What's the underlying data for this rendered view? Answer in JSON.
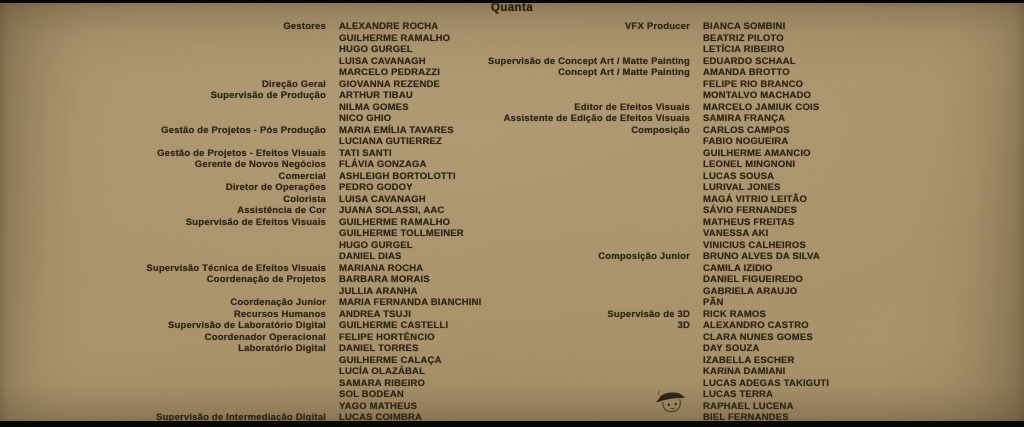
{
  "title": "Quanta",
  "colors": {
    "paper": "#af9970",
    "ink": "#2e2514",
    "letterbox_bar": "#070706"
  },
  "icons": {
    "mascot": "mascot-doodle-icon"
  },
  "credits": {
    "left": [
      {
        "role": "Gestores",
        "names": [
          "ALEXANDRE ROCHA",
          "GUILHERME RAMALHO",
          "HUGO GURGEL",
          "LUISA CAVANAGH",
          "MARCELO PEDRAZZI"
        ]
      },
      {
        "role": "Direção Geral",
        "names": [
          "GIOVANNA REZENDE"
        ]
      },
      {
        "role": "Supervisão de Produção",
        "names": [
          "ARTHUR TIBAU",
          "NILMA GOMES",
          "NICO GHIO"
        ]
      },
      {
        "role": "Gestão de Projetos - Pós Produção",
        "names": [
          "MARIA EMÍLIA TAVARES",
          "LUCIANA GUTIERREZ"
        ]
      },
      {
        "role": "Gestão de Projetos - Efeitos Visuais",
        "names": [
          "TATI SANTI"
        ]
      },
      {
        "role": "Gerente de Novos Negócios",
        "names": [
          "FLÁVIA GONZAGA"
        ]
      },
      {
        "role": "Comercial",
        "names": [
          "ASHLEIGH BORTOLOTTI"
        ]
      },
      {
        "role": "Diretor de Operações",
        "names": [
          "PEDRO GODOY"
        ]
      },
      {
        "role": "Colorista",
        "names": [
          "LUISA CAVANAGH"
        ]
      },
      {
        "role": "Assistência de Cor",
        "names": [
          "JUANA SOLASSI, AAC"
        ]
      },
      {
        "role": "Supervisão de Efeitos Visuais",
        "names": [
          "GUILHERME RAMALHO",
          "GUILHERME TOLLMEINER",
          "HUGO GURGEL",
          "DANIEL DIAS"
        ]
      },
      {
        "role": "Supervisão Técnica de Efeitos Visuais",
        "names": [
          "MARIANA ROCHA"
        ]
      },
      {
        "role": "Coordenação de Projetos",
        "names": [
          "BARBARA MORAIS",
          "JULLIA ARANHA"
        ]
      },
      {
        "role": "Coordenação Junior",
        "names": [
          "MARIA FERNANDA BIANCHINI"
        ]
      },
      {
        "role": "Recursos Humanos",
        "names": [
          "ANDREA TSUJI"
        ]
      },
      {
        "role": "Supervisão de Laboratório Digital",
        "names": [
          "GUILHERME CASTELLI"
        ]
      },
      {
        "role": "Coordenador Operacional",
        "names": [
          "FELIPE HORTÊNCIO"
        ]
      },
      {
        "role": "Laboratório Digital",
        "names": [
          "DANIEL TORRES",
          "GUILHERME CALAÇA",
          "LUCÍA OLAZÁBAL",
          "SAMARA RIBEIRO",
          "SOL BODEAN",
          "YAGO MATHEUS"
        ]
      },
      {
        "role": "Supervisão de Intermediação Digital",
        "names": [
          "LUCAS COIMBRA"
        ]
      }
    ],
    "right": [
      {
        "role": "VFX Producer",
        "names": [
          "BIANCA SOMBINI",
          "BEATRIZ PILOTO",
          "LETÍCIA RIBEIRO"
        ]
      },
      {
        "role": "Supervisão de Concept Art / Matte Painting",
        "names": [
          "EDUARDO SCHAAL"
        ]
      },
      {
        "role": "Concept Art / Matte Painting",
        "names": [
          "AMANDA BROTTO",
          "FELIPE RIO BRANCO",
          "MONTALVO MACHADO"
        ]
      },
      {
        "role": "Editor de Efeitos Visuais",
        "names": [
          "MARCELO JAMIUK COIS"
        ]
      },
      {
        "role": "Assistente de Edição de Efeitos Visuais",
        "names": [
          "SAMIRA FRANÇA"
        ]
      },
      {
        "role": "Composição",
        "names": [
          "CARLOS CAMPOS",
          "FABIO NOGUEIRA",
          "GUILHERME AMANCIO",
          "LEONEL MINGNONI",
          "LUCAS SOUSA",
          "LURIVAL JONES",
          "MAGÁ VITRIO LEITÃO",
          "SÁVIO FERNANDES",
          "MATHEUS FREITAS",
          "VANESSA AKI",
          "VINICIUS CALHEIROS"
        ]
      },
      {
        "role": "Composição Junior",
        "names": [
          "BRUNO ALVES DA SILVA",
          "CAMILA IZIDIO",
          "DANIEL FIGUEIREDO",
          "GABRIELA ARAUJO",
          "PÃN"
        ]
      },
      {
        "role": "Supervisão de 3D",
        "names": [
          "RICK RAMOS"
        ]
      },
      {
        "role": "3D",
        "names": [
          "ALEXANDRO CASTRO",
          "CLARA NUNES GOMES",
          "DAY SOUZA",
          "IZABELLA ESCHER",
          "KARINA DAMIANI",
          "LUCAS ADEGAS TAKIGUTI",
          "LUCAS TERRA",
          "RAPHAEL LUCENA",
          "BIEL FERNANDES"
        ]
      }
    ]
  }
}
